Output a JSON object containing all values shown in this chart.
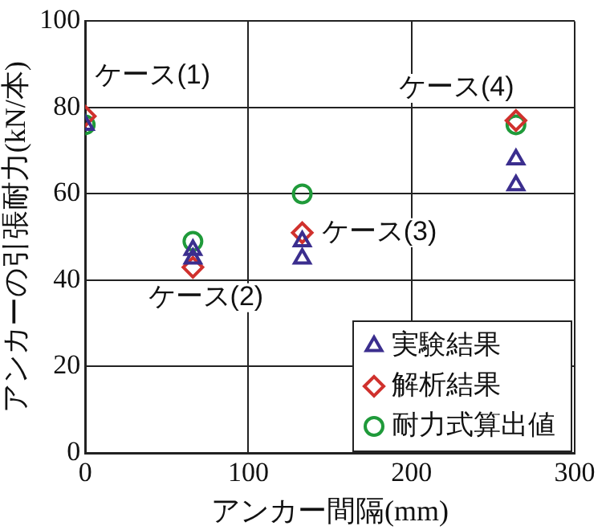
{
  "chart_data": {
    "type": "scatter",
    "xlabel": "アンカー間隔(mm)",
    "ylabel": "アンカーの引張耐力(kN/本)",
    "xlim": [
      0,
      300
    ],
    "xticks": [
      0,
      100,
      200,
      300
    ],
    "ylim": [
      0,
      100
    ],
    "yticks": [
      0,
      20,
      40,
      60,
      80,
      100
    ],
    "grid": true,
    "legend": "bottom right",
    "series": [
      {
        "name": "実験結果",
        "color": "#3b2e8e",
        "marker": "triangle",
        "x": [
          0,
          66,
          66,
          133,
          133,
          264,
          264
        ],
        "values": [
          76,
          47,
          45,
          49,
          45,
          68,
          62
        ]
      },
      {
        "name": "解析結果",
        "color": "#d0312d",
        "marker": "diamond",
        "x": [
          0,
          66,
          133,
          264
        ],
        "values": [
          78,
          43,
          51,
          77
        ]
      },
      {
        "name": "耐力式算出値",
        "color": "#1f9a3a",
        "marker": "circle",
        "x": [
          0,
          66,
          133,
          264
        ],
        "values": [
          76,
          49,
          60,
          76
        ]
      }
    ],
    "annotations": [
      "ケース(1)",
      "ケース(2)",
      "ケース(3)",
      "ケース(4)"
    ]
  }
}
